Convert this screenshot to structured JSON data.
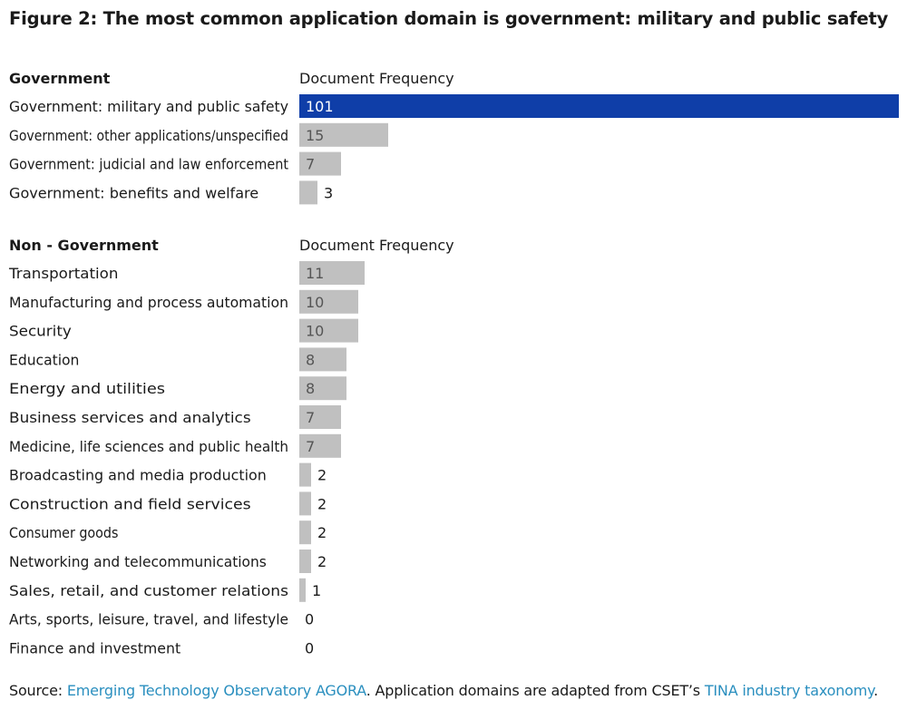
{
  "title": "Figure 2: The most common application domain is government: military and public safety",
  "source": {
    "prefix": "Source: ",
    "link1": "Emerging Technology Observatory AGORA",
    "middle": ". Application domains are adapted from CSET’s ",
    "link2": "TINA industry taxonomy",
    "suffix": "."
  },
  "colors": {
    "highlight": "#0f3ea8",
    "bar": "#c0c0c0",
    "text": "#1a1a1a",
    "highlight_label": "#ffffff",
    "bar_label": "#555555"
  },
  "chart_data": {
    "type": "bar",
    "orientation": "horizontal",
    "xlabel": "Document Frequency",
    "xlim": [
      0,
      101
    ],
    "groups": [
      {
        "name": "Government",
        "value_header": "Document Frequency",
        "categories": [
          "Government: military and public safety",
          "Government: other applications/unspecified",
          "Government: judicial and law enforcement",
          "Government: benefits and welfare"
        ],
        "values": [
          101,
          15,
          7,
          3
        ],
        "highlight": [
          true,
          false,
          false,
          false
        ]
      },
      {
        "name": "Non - Government",
        "value_header": "Document Frequency",
        "categories": [
          "Transportation",
          "Manufacturing and process automation",
          "Security",
          "Education",
          "Energy and utilities",
          "Business services and analytics",
          "Medicine, life sciences and public health",
          "Broadcasting and media production",
          "Construction and field services",
          "Consumer goods",
          "Networking and telecommunications",
          "Sales, retail, and customer relations",
          "Arts, sports, leisure, travel, and lifestyle",
          "Finance and investment"
        ],
        "values": [
          11,
          10,
          10,
          8,
          8,
          7,
          7,
          2,
          2,
          2,
          2,
          1,
          0,
          0
        ],
        "highlight": [
          false,
          false,
          false,
          false,
          false,
          false,
          false,
          false,
          false,
          false,
          false,
          false,
          false,
          false
        ]
      }
    ]
  }
}
